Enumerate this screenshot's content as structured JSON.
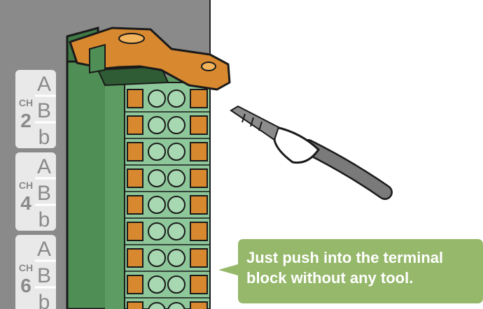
{
  "channels": [
    {
      "ch": "CH",
      "num": "2",
      "rows": [
        "A",
        "B",
        "b"
      ]
    },
    {
      "ch": "CH",
      "num": "4",
      "rows": [
        "A",
        "B",
        "b"
      ]
    },
    {
      "ch": "CH",
      "num": "6",
      "rows": [
        "A",
        "B",
        "b"
      ]
    }
  ],
  "callout": {
    "line1": "Just push into the terminal",
    "line2": "block without any tool."
  },
  "colors": {
    "panel_gray": "#8a8a8a",
    "label_bg": "#e9e9e9",
    "block_green": "#4f8f55",
    "terminal_green": "#8dc79a",
    "lever_orange": "#d8892f",
    "callout_green": "#95b86a"
  },
  "icons": [
    "ferrule-wire-icon",
    "terminal-lever-icon"
  ]
}
